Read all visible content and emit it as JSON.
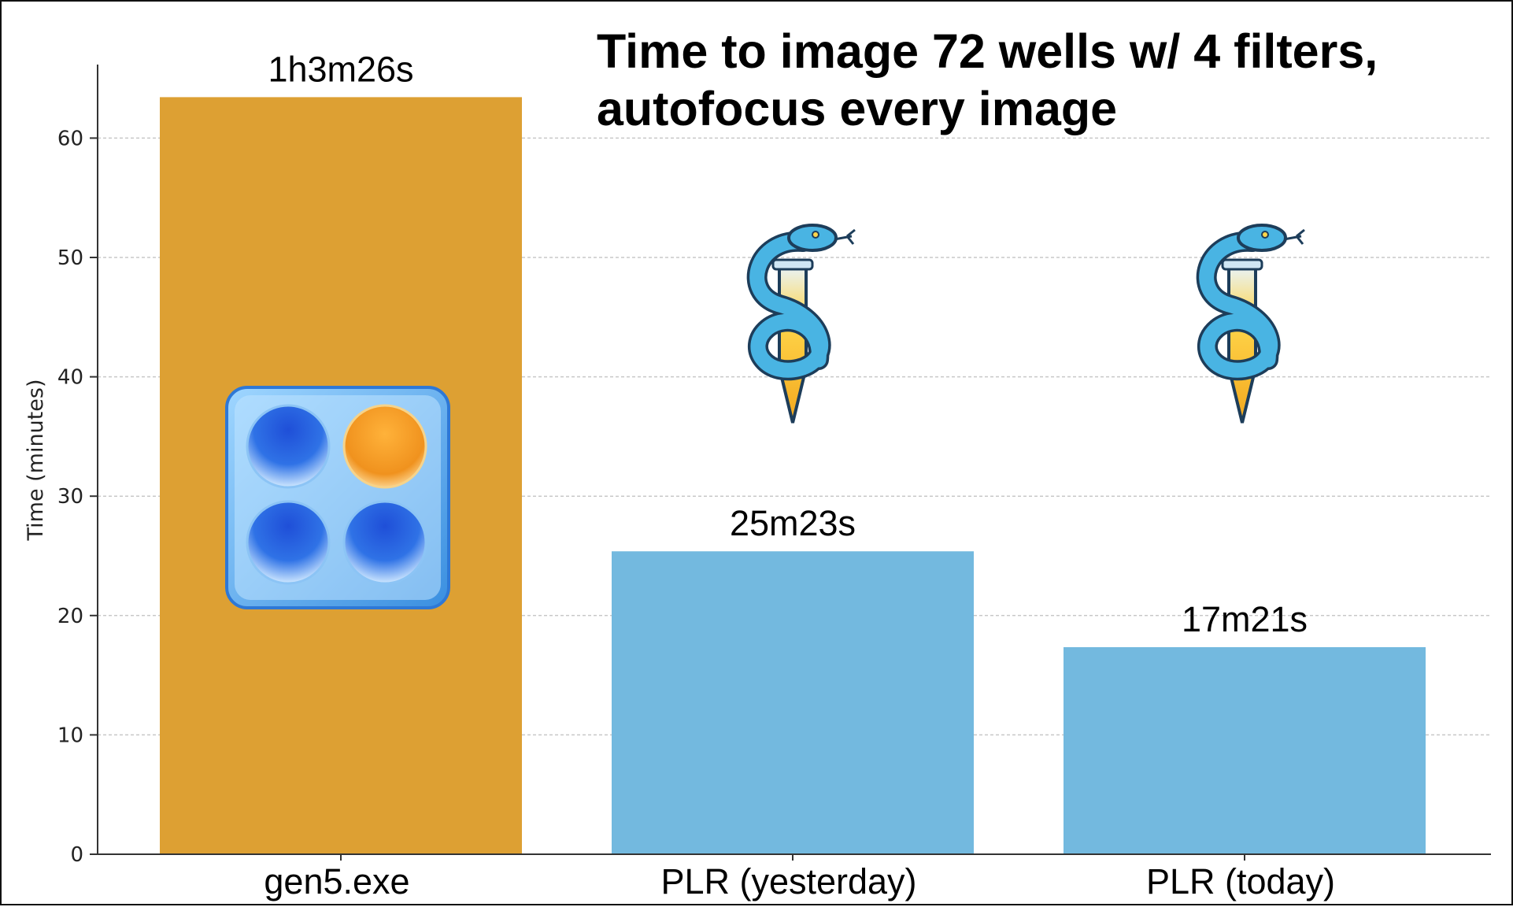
{
  "chart_data": {
    "type": "bar",
    "title_lines": [
      "Time to image 72 wells w/ 4 filters,",
      "autofocus every image"
    ],
    "xlabel": "",
    "ylabel": "Time (minutes)",
    "ylim": [
      0,
      65
    ],
    "yticks": [
      0,
      10,
      20,
      30,
      40,
      50,
      60
    ],
    "grid": "horizontal dashed",
    "categories": [
      "gen5.exe",
      "PLR (yesterday)",
      "PLR (today)"
    ],
    "values": [
      63.43,
      25.38,
      17.35
    ],
    "value_labels": [
      "1h3m26s",
      "25m23s",
      "17m21s"
    ],
    "colors": [
      "#DDA033",
      "#73B9DF",
      "#73B9DF"
    ],
    "bar_icons": [
      "well-plate-icon",
      "snake-test-tube-icon",
      "snake-test-tube-icon"
    ]
  }
}
